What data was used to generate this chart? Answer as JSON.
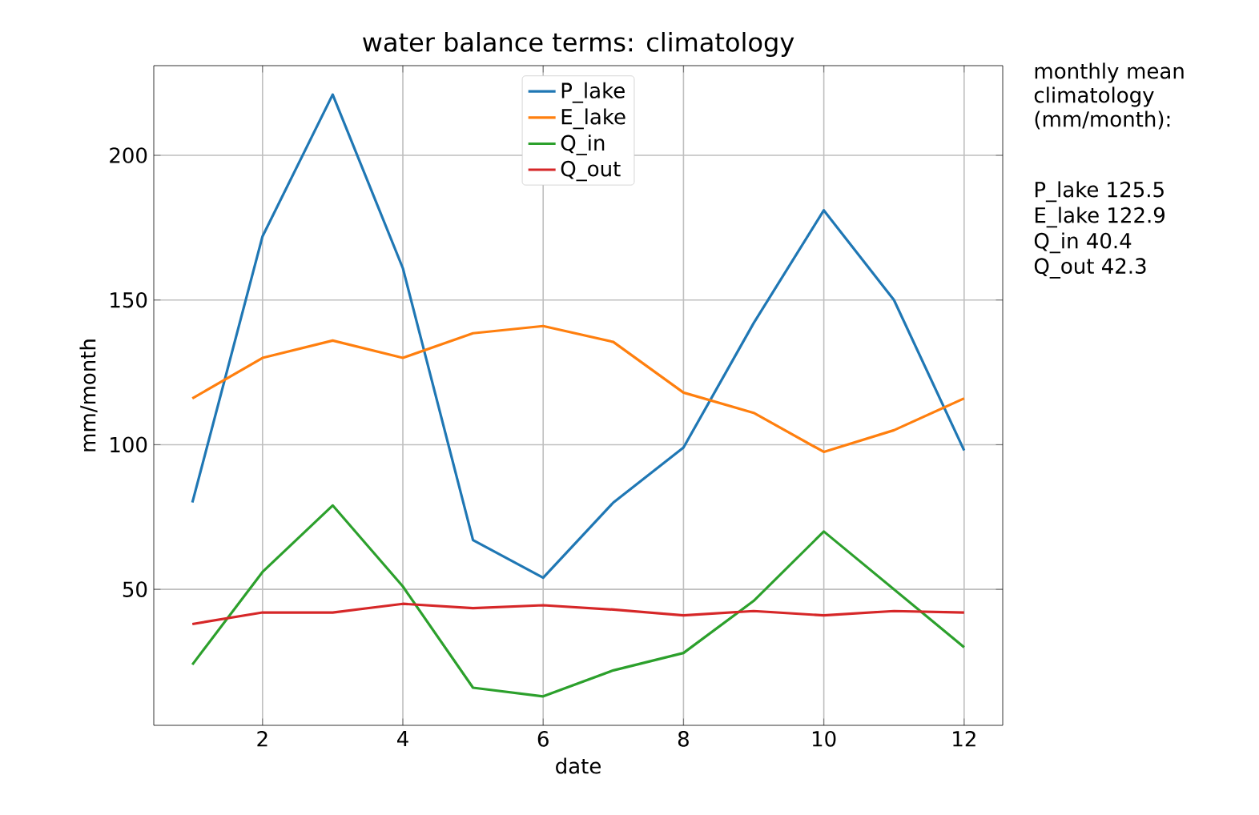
{
  "chart_data": {
    "type": "line",
    "title": "water balance terms: climatology",
    "xlabel": "date",
    "ylabel": "mm/month",
    "x": [
      1,
      2,
      3,
      4,
      5,
      6,
      7,
      8,
      9,
      10,
      11,
      12
    ],
    "series": [
      {
        "name": "P_lake",
        "color": "#1f77b4",
        "values": [
          80,
          172,
          221,
          161,
          67,
          54,
          80,
          99,
          142,
          181,
          150,
          98
        ]
      },
      {
        "name": "E_lake",
        "color": "#ff7f0e",
        "values": [
          116,
          130,
          136,
          130,
          138.5,
          141,
          135.5,
          118,
          111,
          97.5,
          105,
          116
        ]
      },
      {
        "name": "Q_in",
        "color": "#2ca02c",
        "values": [
          24,
          56,
          79,
          51,
          16,
          13,
          22,
          28,
          46,
          70,
          50,
          30
        ]
      },
      {
        "name": "Q_out",
        "color": "#d62728",
        "values": [
          38,
          42,
          42,
          45,
          43.5,
          44.5,
          43,
          41,
          42.5,
          41,
          42.5,
          42
        ]
      }
    ],
    "xlim": [
      0.45,
      12.55
    ],
    "ylim": [
      3,
      231
    ],
    "xticks": [
      2,
      4,
      6,
      8,
      10,
      12
    ],
    "yticks": [
      50,
      100,
      150,
      200
    ],
    "grid": true,
    "legend": "top",
    "line_style": "solid",
    "marker": "none",
    "annotations": [
      "monthly mean climatology (mm/month):",
      "P_lake  125.5",
      "E_lake  122.9",
      "Q_in     40.4",
      "Q_out    42.3"
    ]
  }
}
